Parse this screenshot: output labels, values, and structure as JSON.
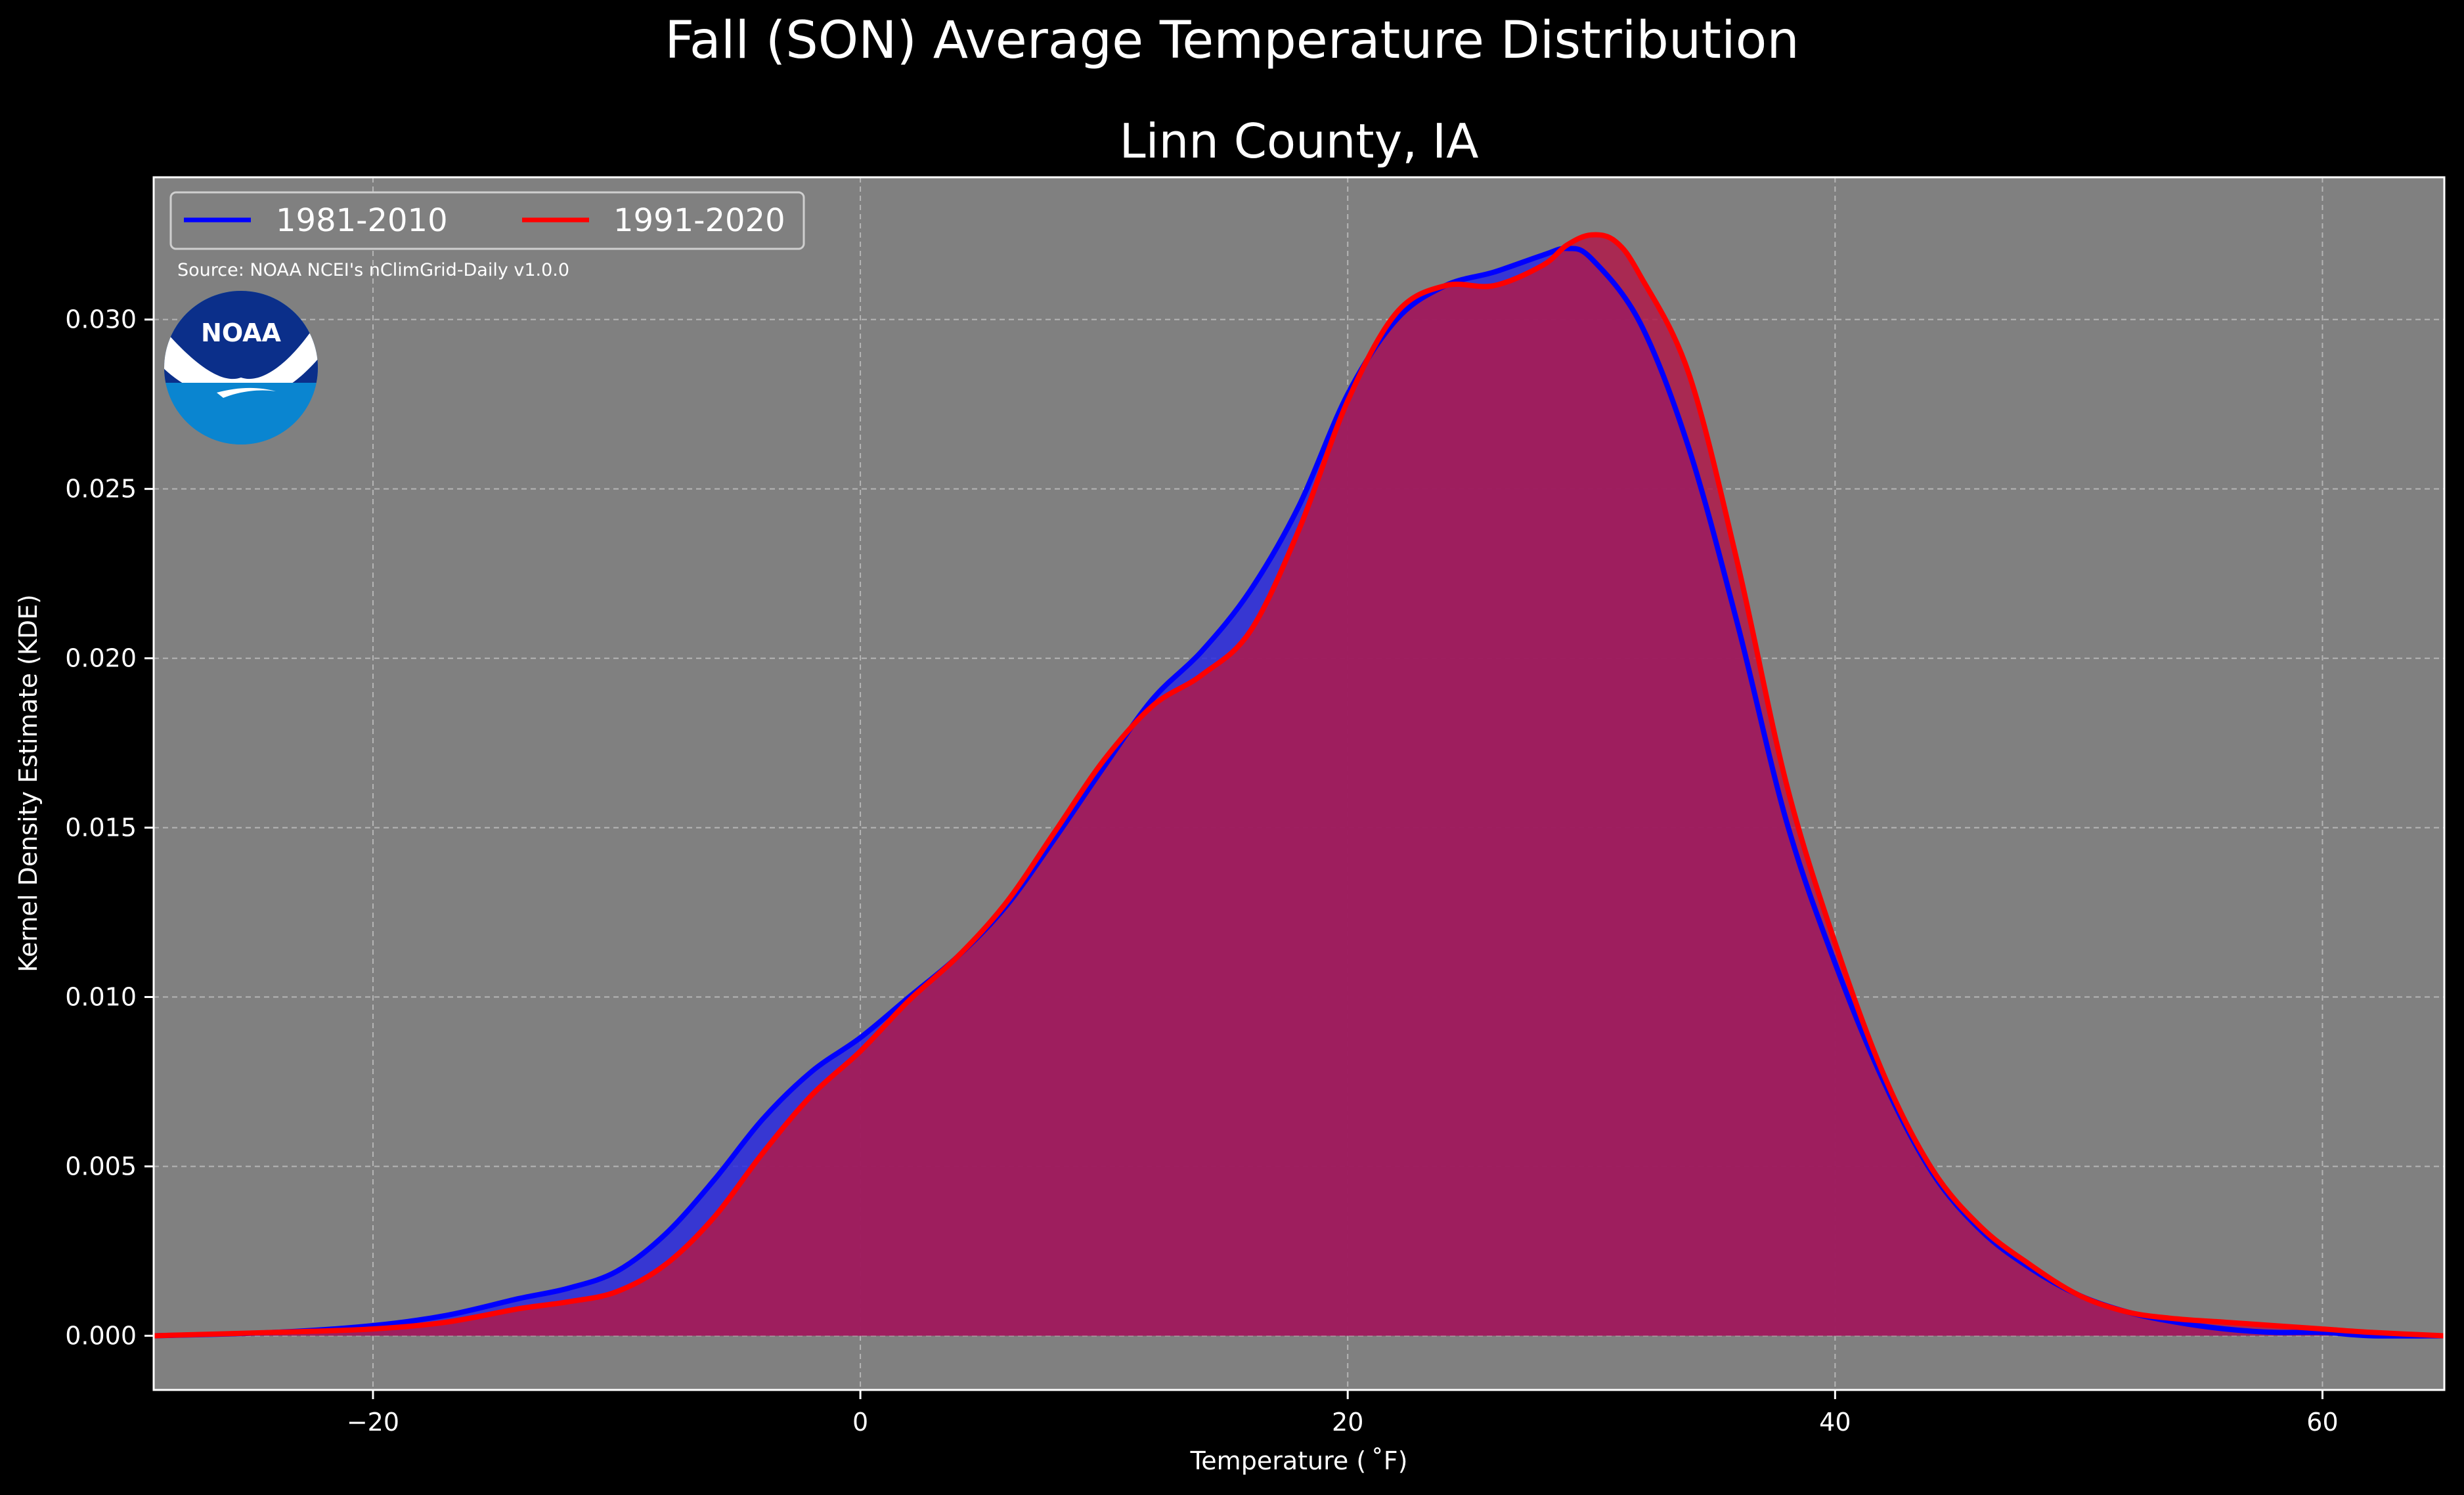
{
  "suptitle": "Fall (SON) Average Temperature Distribution",
  "title": "Linn County, IA",
  "source": "Source: NOAA NCEI's nClimGrid-Daily v1.0.0",
  "logo": {
    "text": "NOAA",
    "icon": "noaa-logo"
  },
  "colors": {
    "background": "#000000",
    "plot_bg": "#808080",
    "series1": "#0000ff",
    "series2": "#ff0000",
    "fill1": "#2a2ae0",
    "fill2": "#b01a4a"
  },
  "chart_data": {
    "type": "area",
    "xlabel": "Temperature ($^\\circ$F)",
    "xlabel_display": "Temperature ( ˚F)",
    "ylabel": "Kernel Density Estimate (KDE)",
    "xlim": [
      -29,
      65
    ],
    "ylim": [
      -0.0016,
      0.0342
    ],
    "xticks": [
      -20,
      0,
      20,
      40,
      60
    ],
    "xtick_labels": [
      "−20",
      "0",
      "20",
      "40",
      "60"
    ],
    "yticks": [
      0.0,
      0.005,
      0.01,
      0.015,
      0.02,
      0.025,
      0.03
    ],
    "ytick_labels": [
      "0.000",
      "0.005",
      "0.010",
      "0.015",
      "0.020",
      "0.025",
      "0.030"
    ],
    "grid": true,
    "legend": {
      "location": "top-left",
      "columns": 2
    },
    "series": [
      {
        "name": "1981-2010",
        "color": "#0000ff",
        "x": [
          -29,
          -24,
          -20,
          -17,
          -14,
          -12,
          -10,
          -8,
          -6,
          -4,
          -2,
          0,
          2,
          4,
          6,
          8,
          10,
          12,
          14,
          16,
          18,
          20,
          22,
          24,
          26,
          28,
          29,
          30,
          32,
          34,
          36,
          38,
          40,
          42,
          44,
          46,
          48,
          50,
          52,
          54,
          56,
          58,
          60,
          62,
          65
        ],
        "y": [
          0.0,
          0.0001,
          0.0003,
          0.0006,
          0.0011,
          0.0014,
          0.0019,
          0.003,
          0.0046,
          0.0064,
          0.0078,
          0.0088,
          0.01,
          0.0112,
          0.0127,
          0.0147,
          0.0168,
          0.0188,
          0.0202,
          0.022,
          0.0245,
          0.0278,
          0.03,
          0.031,
          0.0314,
          0.0319,
          0.0321,
          0.0318,
          0.0299,
          0.0262,
          0.021,
          0.0152,
          0.011,
          0.0075,
          0.0048,
          0.0031,
          0.002,
          0.0012,
          0.0007,
          0.0004,
          0.0002,
          0.0001,
          0.0001,
          0.0,
          0.0
        ]
      },
      {
        "name": "1991-2020",
        "color": "#ff0000",
        "x": [
          -29,
          -24,
          -20,
          -17,
          -14,
          -12,
          -10,
          -8,
          -6,
          -4,
          -2,
          0,
          2,
          4,
          6,
          8,
          10,
          12,
          14,
          16,
          18,
          20,
          22,
          24,
          26,
          28,
          29,
          30,
          31,
          32,
          34,
          36,
          38,
          40,
          42,
          44,
          46,
          48,
          50,
          52,
          54,
          56,
          58,
          60,
          62,
          65
        ],
        "y": [
          0.0,
          0.0001,
          0.0002,
          0.0004,
          0.0008,
          0.001,
          0.0013,
          0.0021,
          0.0035,
          0.0054,
          0.0071,
          0.0084,
          0.0099,
          0.0112,
          0.0128,
          0.0149,
          0.017,
          0.0186,
          0.0195,
          0.0208,
          0.0238,
          0.0276,
          0.0302,
          0.031,
          0.031,
          0.0316,
          0.0322,
          0.0325,
          0.0323,
          0.0313,
          0.0284,
          0.0228,
          0.0163,
          0.0116,
          0.0077,
          0.0049,
          0.0032,
          0.0021,
          0.0012,
          0.0007,
          0.0005,
          0.0004,
          0.0003,
          0.0002,
          0.0001,
          0.0
        ]
      }
    ]
  }
}
